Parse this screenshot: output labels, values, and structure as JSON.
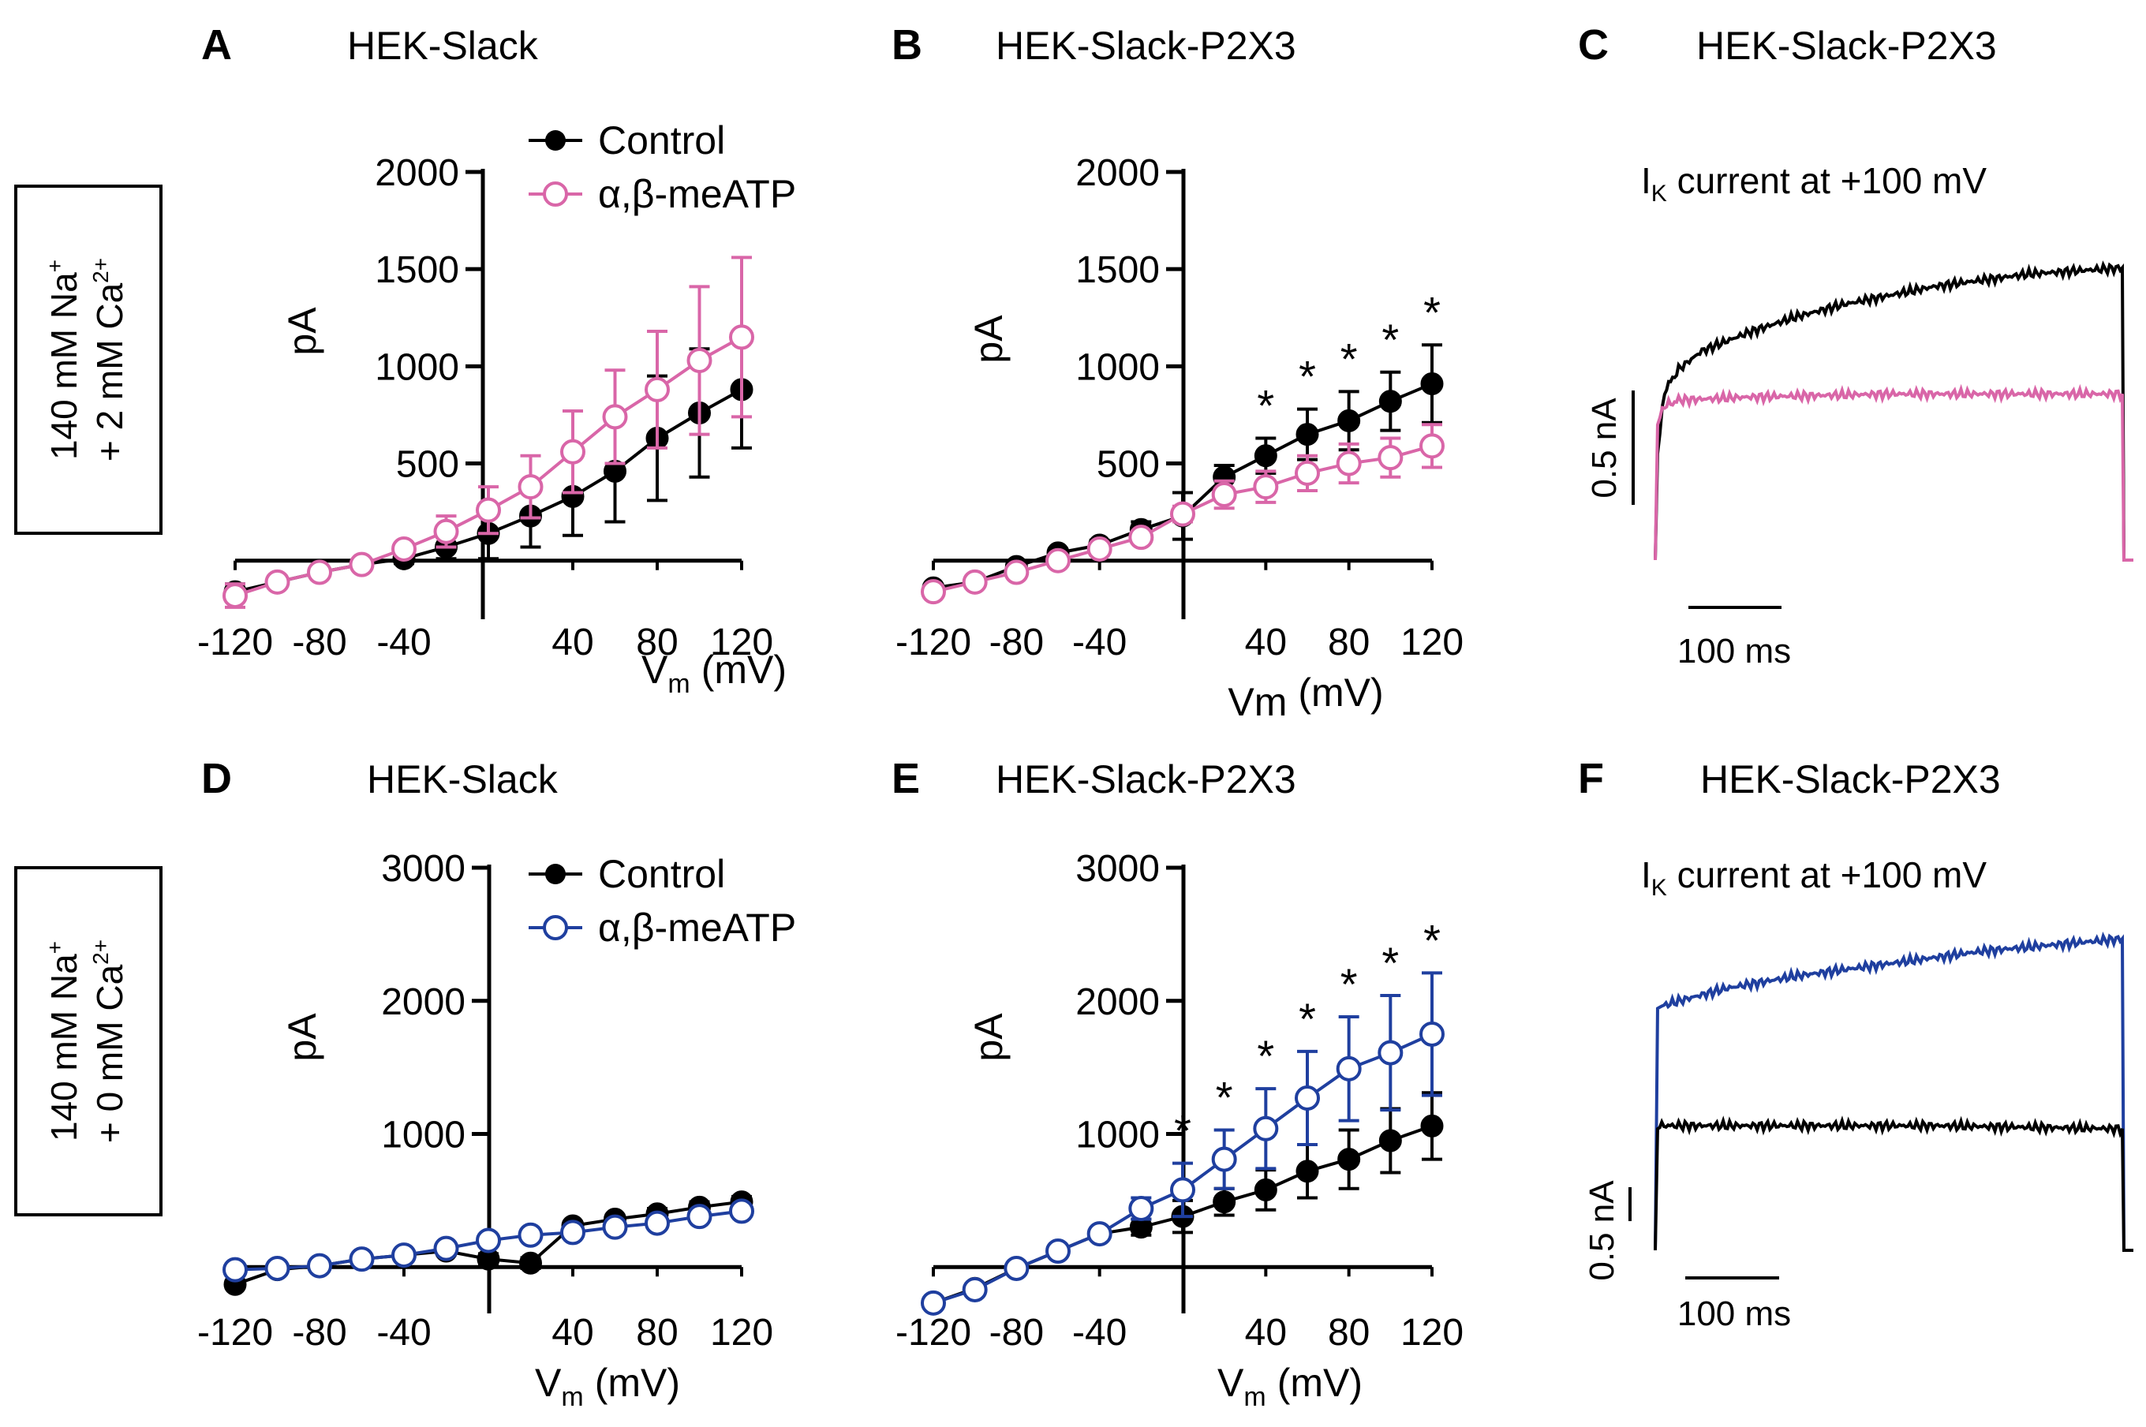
{
  "figure": {
    "row_labels": [
      {
        "line1": "140 mM Na",
        "line1_sup": "+",
        "line2": "+ 2 mM Ca",
        "line2_sup": "2+"
      },
      {
        "line1": "140 mM Na",
        "line1_sup": "+",
        "line2": "+ 0 mM Ca",
        "line2_sup": "2+"
      }
    ]
  },
  "chart_data": [
    {
      "panel": "A",
      "type": "line",
      "title": "HEK-Slack",
      "xlabel": "V",
      "xlabel_sub": "m",
      "xlabel_unit": "(mV)",
      "ylabel": "pA",
      "xlim": [
        -120,
        120
      ],
      "ylim": [
        -200,
        2000
      ],
      "xticks": [
        -120,
        -80,
        -40,
        40,
        80,
        120
      ],
      "yticks": [
        500,
        1000,
        1500,
        2000
      ],
      "x": [
        -120,
        -100,
        -80,
        -60,
        -40,
        -20,
        0,
        20,
        40,
        60,
        80,
        100,
        120
      ],
      "series": [
        {
          "name": "Control",
          "marker": "filled",
          "color": "#000000",
          "values": [
            -160,
            -110,
            -60,
            -20,
            10,
            70,
            140,
            230,
            330,
            460,
            630,
            760,
            880
          ],
          "errors": [
            40,
            30,
            25,
            20,
            25,
            60,
            130,
            160,
            200,
            260,
            320,
            330,
            300
          ]
        },
        {
          "name": "α,β-meATP",
          "marker": "open",
          "color": "#d966a8",
          "values": [
            -180,
            -110,
            -60,
            -20,
            60,
            150,
            260,
            380,
            560,
            740,
            880,
            1030,
            1150
          ],
          "errors": [
            60,
            30,
            20,
            20,
            30,
            80,
            120,
            160,
            210,
            240,
            300,
            380,
            410
          ]
        }
      ],
      "legend": [
        "Control",
        "α,β-meATP"
      ],
      "significance": []
    },
    {
      "panel": "B",
      "type": "line",
      "title": "HEK-Slack-P2X3",
      "xlabel": "Vm",
      "xlabel_sub": "",
      "xlabel_unit": "(mV)",
      "ylabel": "pA",
      "xlim": [
        -120,
        120
      ],
      "ylim": [
        -200,
        2000
      ],
      "xticks": [
        -120,
        -80,
        -40,
        40,
        80,
        120
      ],
      "yticks": [
        500,
        1000,
        1500,
        2000
      ],
      "x": [
        -120,
        -100,
        -80,
        -60,
        -40,
        -20,
        0,
        20,
        40,
        60,
        80,
        100,
        120
      ],
      "series": [
        {
          "name": "Control",
          "marker": "filled",
          "color": "#000000",
          "values": [
            -140,
            -110,
            -30,
            40,
            80,
            160,
            230,
            430,
            540,
            650,
            720,
            820,
            910
          ],
          "errors": [
            15,
            15,
            15,
            20,
            25,
            40,
            120,
            60,
            90,
            130,
            150,
            150,
            200
          ]
        },
        {
          "name": "α,β-meATP",
          "marker": "open",
          "color": "#d966a8",
          "values": [
            -160,
            -110,
            -60,
            0,
            60,
            120,
            240,
            340,
            380,
            450,
            500,
            530,
            590
          ],
          "errors": [
            15,
            15,
            15,
            20,
            20,
            30,
            40,
            70,
            80,
            90,
            100,
            100,
            110
          ]
        }
      ],
      "legend": [],
      "significance": [
        {
          "x": 40,
          "label": "*"
        },
        {
          "x": 60,
          "label": "*"
        },
        {
          "x": 80,
          "label": "*"
        },
        {
          "x": 100,
          "label": "*"
        },
        {
          "x": 120,
          "label": "*"
        }
      ]
    },
    {
      "panel": "D",
      "type": "line",
      "title": "HEK-Slack",
      "xlabel": "V",
      "xlabel_sub": "m",
      "xlabel_unit": "(mV)",
      "ylabel": "pA",
      "xlim": [
        -120,
        120
      ],
      "ylim": [
        -200,
        3000
      ],
      "xticks": [
        -120,
        -80,
        -40,
        40,
        80,
        120
      ],
      "yticks": [
        1000,
        2000,
        3000
      ],
      "x": [
        -120,
        -100,
        -80,
        -60,
        -40,
        -20,
        0,
        20,
        40,
        60,
        80,
        100,
        120
      ],
      "series": [
        {
          "name": "Control",
          "marker": "filled",
          "color": "#000000",
          "values": [
            -130,
            -20,
            10,
            60,
            90,
            120,
            60,
            30,
            310,
            360,
            400,
            450,
            490
          ],
          "errors": [
            20,
            20,
            20,
            20,
            20,
            30,
            40,
            40,
            30,
            30,
            40,
            40,
            40
          ]
        },
        {
          "name": "α,β-meATP",
          "marker": "open",
          "color": "#1f3f9f",
          "values": [
            -20,
            -10,
            10,
            60,
            90,
            140,
            200,
            240,
            260,
            300,
            330,
            380,
            420
          ],
          "errors": [
            20,
            20,
            20,
            20,
            20,
            20,
            30,
            30,
            30,
            30,
            40,
            40,
            40
          ]
        }
      ],
      "legend": [
        "Control",
        "α,β-meATP"
      ],
      "significance": []
    },
    {
      "panel": "E",
      "type": "line",
      "title": "HEK-Slack-P2X3",
      "xlabel": "V",
      "xlabel_sub": "m",
      "xlabel_unit": "(mV)",
      "ylabel": "pA",
      "xlim": [
        -120,
        120
      ],
      "ylim": [
        -200,
        3000
      ],
      "xticks": [
        -120,
        -80,
        -40,
        40,
        80,
        120
      ],
      "yticks": [
        1000,
        2000,
        3000
      ],
      "x": [
        -120,
        -100,
        -80,
        -60,
        -40,
        -20,
        0,
        20,
        40,
        60,
        80,
        100,
        120
      ],
      "series": [
        {
          "name": "Control",
          "marker": "filled",
          "color": "#000000",
          "values": [
            -270,
            -160,
            -10,
            120,
            250,
            300,
            380,
            490,
            580,
            720,
            810,
            950,
            1060
          ],
          "errors": [
            20,
            20,
            20,
            30,
            30,
            60,
            120,
            100,
            150,
            200,
            220,
            240,
            250
          ]
        },
        {
          "name": "α,β-meATP",
          "marker": "open",
          "color": "#1f3f9f",
          "values": [
            -270,
            -170,
            -10,
            120,
            250,
            440,
            580,
            810,
            1040,
            1270,
            1490,
            1610,
            1750
          ],
          "errors": [
            20,
            20,
            20,
            30,
            40,
            80,
            200,
            220,
            300,
            350,
            390,
            430,
            460
          ]
        }
      ],
      "legend": [],
      "significance": [
        {
          "x": 0,
          "label": "*"
        },
        {
          "x": 20,
          "label": "*"
        },
        {
          "x": 40,
          "label": "*"
        },
        {
          "x": 60,
          "label": "*"
        },
        {
          "x": 80,
          "label": "*"
        },
        {
          "x": 100,
          "label": "*"
        },
        {
          "x": 120,
          "label": "*"
        }
      ]
    },
    {
      "panel": "C",
      "type": "line",
      "title": "HEK-Slack-P2X3",
      "subtitle": "I",
      "subtitle_sub": "K",
      "subtitle_rest": " current at +100 mV",
      "scale_y": "0.5 nA",
      "scale_x": "100 ms",
      "series": [
        {
          "name": "Control",
          "color": "#000000",
          "trace": [
            [
              0,
              0
            ],
            [
              0.005,
              0.35
            ],
            [
              0.02,
              0.55
            ],
            [
              0.05,
              0.62
            ],
            [
              0.1,
              0.68
            ],
            [
              0.2,
              0.74
            ],
            [
              0.3,
              0.79
            ],
            [
              0.4,
              0.83
            ],
            [
              0.5,
              0.86
            ],
            [
              0.6,
              0.89
            ],
            [
              0.7,
              0.91
            ],
            [
              0.8,
              0.93
            ],
            [
              0.9,
              0.94
            ],
            [
              1.0,
              0.95
            ]
          ]
        },
        {
          "name": "α,β-meATP",
          "color": "#d966a8",
          "trace": [
            [
              0,
              0
            ],
            [
              0.005,
              0.45
            ],
            [
              0.02,
              0.5
            ],
            [
              0.05,
              0.52
            ],
            [
              0.2,
              0.53
            ],
            [
              0.5,
              0.54
            ],
            [
              0.8,
              0.54
            ],
            [
              1.0,
              0.54
            ]
          ]
        }
      ]
    },
    {
      "panel": "F",
      "type": "line",
      "title": "HEK-Slack-P2X3",
      "subtitle": "I",
      "subtitle_sub": "K",
      "subtitle_rest": " current at +100 mV",
      "scale_y": "0.5 nA",
      "scale_x": "100 ms",
      "series": [
        {
          "name": "α,β-meATP",
          "color": "#1f3f9f",
          "trace": [
            [
              0,
              0
            ],
            [
              0.005,
              0.78
            ],
            [
              0.05,
              0.8
            ],
            [
              0.15,
              0.84
            ],
            [
              0.3,
              0.88
            ],
            [
              0.5,
              0.92
            ],
            [
              0.7,
              0.96
            ],
            [
              0.85,
              0.98
            ],
            [
              1.0,
              1.0
            ]
          ]
        },
        {
          "name": "Control",
          "color": "#000000",
          "trace": [
            [
              0,
              0
            ],
            [
              0.005,
              0.4
            ],
            [
              0.05,
              0.4
            ],
            [
              0.3,
              0.4
            ],
            [
              0.6,
              0.4
            ],
            [
              1.0,
              0.39
            ]
          ]
        }
      ]
    }
  ]
}
